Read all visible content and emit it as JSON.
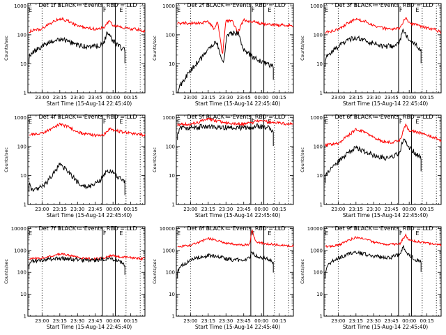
{
  "chart_data": [
    {
      "type": "line",
      "title": "Det 1f BLACK = Events, RED = LLD",
      "xlabel": "Start Time (15-Aug-14 22:45:40)",
      "ylabel": "Counts/sec",
      "yscale": "log",
      "ylim": [
        1,
        1200
      ],
      "xlim": [
        "22:48",
        "00:27"
      ],
      "x_ticks": [
        "23:00",
        "23:15",
        "23:30",
        "23:45",
        "00:00",
        "00:15"
      ],
      "y_ticks": [
        "1",
        "10",
        "100",
        "1000"
      ],
      "region_labels": [
        "E",
        "F",
        "E"
      ],
      "series": [
        {
          "color": "#ff0000",
          "x": [
            "22:49",
            "23:00",
            "23:08",
            "23:15",
            "23:22",
            "23:30",
            "23:38",
            "23:45",
            "23:52",
            "23:57",
            "00:00",
            "00:05",
            "00:15",
            "00:22",
            "00:27"
          ],
          "values": [
            130,
            160,
            260,
            370,
            300,
            200,
            170,
            160,
            170,
            320,
            200,
            190,
            160,
            150,
            130
          ]
        },
        {
          "color": "#000000",
          "x": [
            "22:49",
            "22:52",
            "23:00",
            "23:08",
            "23:15",
            "23:22",
            "23:30",
            "23:38",
            "23:45",
            "23:52",
            "23:55",
            "23:57",
            "00:00",
            "00:05",
            "00:10"
          ],
          "values": [
            18,
            25,
            40,
            60,
            70,
            60,
            45,
            38,
            40,
            48,
            120,
            95,
            60,
            40,
            30
          ]
        }
      ]
    },
    {
      "type": "line",
      "title": "Det 2f BLACK = Events, RED = LLD",
      "xlabel": "Start Time (15-Aug-14 22:45:40)",
      "ylabel": "Counts/sec",
      "yscale": "log",
      "ylim": [
        1,
        1200
      ],
      "xlim": [
        "22:48",
        "00:27"
      ],
      "x_ticks": [
        "23:00",
        "23:15",
        "23:30",
        "23:45",
        "00:00",
        "00:15"
      ],
      "y_ticks": [
        "1",
        "10",
        "100",
        "1000"
      ],
      "region_labels": [
        "E",
        "F",
        "E"
      ],
      "series": [
        {
          "color": "#ff0000",
          "x": [
            "22:49",
            "23:00",
            "23:08",
            "23:15",
            "23:20",
            "23:23",
            "23:27",
            "23:30",
            "23:35",
            "23:40",
            "23:45",
            "23:55",
            "00:05",
            "00:15",
            "00:27"
          ],
          "values": [
            250,
            250,
            250,
            280,
            160,
            300,
            20,
            300,
            320,
            120,
            320,
            270,
            220,
            220,
            210
          ]
        },
        {
          "color": "#000000",
          "x": [
            "22:49",
            "22:52",
            "23:00",
            "23:08",
            "23:15",
            "23:22",
            "23:28",
            "23:31",
            "23:35",
            "23:40",
            "23:45",
            "23:55",
            "00:00",
            "00:05",
            "00:10"
          ],
          "values": [
            1.2,
            2,
            6,
            14,
            30,
            60,
            10,
            100,
            110,
            120,
            30,
            15,
            12,
            10,
            8
          ]
        }
      ]
    },
    {
      "type": "line",
      "title": "Det 3f BLACK = Events, RED = LLD",
      "xlabel": "Start Time (15-Aug-14 22:45:40)",
      "ylabel": "Counts/sec",
      "yscale": "log",
      "ylim": [
        1,
        1200
      ],
      "xlim": [
        "22:48",
        "00:27"
      ],
      "x_ticks": [
        "23:00",
        "23:15",
        "23:30",
        "23:45",
        "00:00",
        "00:15"
      ],
      "y_ticks": [
        "1",
        "10",
        "100",
        "1000"
      ],
      "region_labels": [
        "E",
        "F",
        "E"
      ],
      "series": [
        {
          "color": "#ff0000",
          "x": [
            "22:49",
            "23:00",
            "23:08",
            "23:15",
            "23:22",
            "23:30",
            "23:38",
            "23:45",
            "23:52",
            "23:57",
            "00:00",
            "00:05",
            "00:15",
            "00:22",
            "00:27"
          ],
          "values": [
            120,
            150,
            250,
            350,
            300,
            200,
            170,
            160,
            170,
            400,
            250,
            220,
            170,
            150,
            120
          ]
        },
        {
          "color": "#000000",
          "x": [
            "22:49",
            "22:52",
            "23:00",
            "23:08",
            "23:15",
            "23:22",
            "23:30",
            "23:38",
            "23:45",
            "23:52",
            "23:55",
            "23:57",
            "00:00",
            "00:05",
            "00:10"
          ],
          "values": [
            15,
            22,
            40,
            65,
            80,
            65,
            50,
            40,
            42,
            55,
            150,
            110,
            70,
            50,
            30
          ]
        }
      ]
    },
    {
      "type": "line",
      "title": "Det 4f BLACK = Events, RED = LLD",
      "xlabel": "Start Time (15-Aug-14 22:45:40)",
      "ylabel": "Counts/sec",
      "yscale": "log",
      "ylim": [
        1,
        1200
      ],
      "xlim": [
        "22:48",
        "00:27"
      ],
      "x_ticks": [
        "23:00",
        "23:15",
        "23:30",
        "23:45",
        "00:00",
        "00:15"
      ],
      "y_ticks": [
        "1",
        "10",
        "100",
        "1000"
      ],
      "region_labels": [
        "E",
        "F",
        "E"
      ],
      "series": [
        {
          "color": "#ff0000",
          "x": [
            "22:49",
            "23:00",
            "23:08",
            "23:15",
            "23:22",
            "23:30",
            "23:38",
            "23:45",
            "23:52",
            "23:57",
            "00:00",
            "00:05",
            "00:15",
            "00:22",
            "00:27"
          ],
          "values": [
            260,
            280,
            420,
            580,
            480,
            320,
            260,
            240,
            250,
            420,
            380,
            330,
            290,
            260,
            250
          ]
        },
        {
          "color": "#000000",
          "x": [
            "22:49",
            "22:52",
            "23:00",
            "23:08",
            "23:15",
            "23:22",
            "23:30",
            "23:38",
            "23:45",
            "23:52",
            "23:55",
            "23:57",
            "00:00",
            "00:05",
            "00:10"
          ],
          "values": [
            5,
            3,
            4,
            9,
            24,
            14,
            6,
            4,
            5,
            9,
            14,
            15,
            12,
            8,
            6
          ]
        }
      ]
    },
    {
      "type": "line",
      "title": "Det 5f BLACK = Events, RED = LLD",
      "xlabel": "Start Time (15-Aug-14 22:45:40)",
      "ylabel": "Counts/sec",
      "yscale": "log",
      "ylim": [
        1,
        1200
      ],
      "xlim": [
        "22:48",
        "00:27"
      ],
      "x_ticks": [
        "23:00",
        "23:15",
        "23:30",
        "23:45",
        "00:00",
        "00:15"
      ],
      "y_ticks": [
        "1",
        "10",
        "100",
        "1000"
      ],
      "region_labels": [
        "E",
        "F",
        "E"
      ],
      "series": [
        {
          "color": "#ff0000",
          "x": [
            "22:49",
            "23:00",
            "23:08",
            "23:15",
            "23:22",
            "23:30",
            "23:38",
            "23:45",
            "23:52",
            "23:57",
            "00:00",
            "00:05",
            "00:15",
            "00:22",
            "00:27"
          ],
          "values": [
            560,
            580,
            720,
            880,
            760,
            650,
            610,
            600,
            640,
            760,
            740,
            700,
            650,
            600,
            580
          ]
        },
        {
          "color": "#000000",
          "x": [
            "22:49",
            "22:52",
            "23:00",
            "23:08",
            "23:15",
            "23:22",
            "23:30",
            "23:38",
            "23:45",
            "23:52",
            "23:55",
            "23:57",
            "00:00",
            "00:05",
            "00:10"
          ],
          "values": [
            300,
            420,
            450,
            470,
            500,
            480,
            450,
            430,
            440,
            460,
            490,
            500,
            480,
            470,
            300
          ]
        }
      ]
    },
    {
      "type": "line",
      "title": "Det 6f BLACK = Events, RED = LLD",
      "xlabel": "Start Time (15-Aug-14 22:45:40)",
      "ylabel": "Counts/sec",
      "yscale": "log",
      "ylim": [
        1,
        1200
      ],
      "xlim": [
        "22:48",
        "00:27"
      ],
      "x_ticks": [
        "23:00",
        "23:15",
        "23:30",
        "23:45",
        "00:00",
        "00:15"
      ],
      "y_ticks": [
        "1",
        "10",
        "100",
        "1000"
      ],
      "region_labels": [
        "E",
        "F",
        "E"
      ],
      "series": [
        {
          "color": "#ff0000",
          "x": [
            "22:49",
            "23:00",
            "23:08",
            "23:15",
            "23:22",
            "23:30",
            "23:38",
            "23:45",
            "23:52",
            "23:57",
            "00:00",
            "00:05",
            "00:15",
            "00:22",
            "00:27"
          ],
          "values": [
            110,
            130,
            230,
            380,
            320,
            200,
            150,
            140,
            160,
            550,
            350,
            330,
            250,
            200,
            160
          ]
        },
        {
          "color": "#000000",
          "x": [
            "22:49",
            "22:52",
            "23:00",
            "23:08",
            "23:15",
            "23:22",
            "23:30",
            "23:38",
            "23:45",
            "23:52",
            "23:55",
            "23:57",
            "00:00",
            "00:05",
            "00:10"
          ],
          "values": [
            10,
            15,
            30,
            60,
            90,
            70,
            50,
            40,
            45,
            60,
            180,
            130,
            90,
            60,
            40
          ]
        }
      ]
    },
    {
      "type": "line",
      "title": "Det 7f BLACK = Events, RED = LLD",
      "xlabel": "Start Time (15-Aug-14 22:45:40)",
      "ylabel": "Counts/sec",
      "yscale": "log",
      "ylim": [
        1,
        12000
      ],
      "xlim": [
        "22:48",
        "00:27"
      ],
      "x_ticks": [
        "23:00",
        "23:15",
        "23:30",
        "23:45",
        "00:00",
        "00:15"
      ],
      "y_ticks": [
        "1",
        "10",
        "100",
        "1000",
        "10000"
      ],
      "region_labels": [
        "E",
        "F",
        "E"
      ],
      "series": [
        {
          "color": "#ff0000",
          "x": [
            "22:49",
            "23:00",
            "23:08",
            "23:15",
            "23:22",
            "23:30",
            "23:38",
            "23:45",
            "23:52",
            "23:57",
            "00:00",
            "00:05",
            "00:15",
            "00:22",
            "00:27"
          ],
          "values": [
            420,
            450,
            550,
            700,
            600,
            480,
            430,
            420,
            450,
            550,
            600,
            520,
            470,
            430,
            410
          ]
        },
        {
          "color": "#000000",
          "x": [
            "22:49",
            "22:52",
            "23:00",
            "23:08",
            "23:15",
            "23:22",
            "23:30",
            "23:38",
            "23:45",
            "23:52",
            "23:55",
            "23:57",
            "00:00",
            "00:05",
            "00:10"
          ],
          "values": [
            250,
            340,
            370,
            400,
            440,
            420,
            380,
            350,
            360,
            400,
            440,
            430,
            400,
            350,
            220
          ]
        }
      ]
    },
    {
      "type": "line",
      "title": "Det 8f BLACK = Events, RED = LLD",
      "xlabel": "Start Time (15-Aug-14 22:45:40)",
      "ylabel": "Counts/sec",
      "yscale": "log",
      "ylim": [
        1,
        12000
      ],
      "xlim": [
        "22:48",
        "00:27"
      ],
      "x_ticks": [
        "23:00",
        "23:15",
        "23:30",
        "23:45",
        "00:00",
        "00:15"
      ],
      "y_ticks": [
        "1",
        "10",
        "100",
        "1000",
        "10000"
      ],
      "region_labels": [
        "E",
        "F",
        "E"
      ],
      "series": [
        {
          "color": "#ff0000",
          "x": [
            "22:49",
            "23:00",
            "23:08",
            "23:15",
            "23:22",
            "23:30",
            "23:38",
            "23:45",
            "23:50",
            "23:52",
            "23:55",
            "00:00",
            "00:05",
            "00:15",
            "00:27"
          ],
          "values": [
            1500,
            1700,
            2500,
            3500,
            3000,
            2200,
            1900,
            1800,
            1900,
            9000,
            2500,
            2200,
            2000,
            1800,
            1600
          ]
        },
        {
          "color": "#000000",
          "x": [
            "22:49",
            "22:52",
            "23:00",
            "23:08",
            "23:15",
            "23:22",
            "23:30",
            "23:38",
            "23:45",
            "23:50",
            "23:52",
            "23:55",
            "00:00",
            "00:05",
            "00:10"
          ],
          "values": [
            100,
            200,
            350,
            500,
            600,
            520,
            420,
            370,
            380,
            450,
            900,
            600,
            500,
            400,
            280
          ]
        }
      ]
    },
    {
      "type": "line",
      "title": "Det 9f BLACK = Events, RED = LLD",
      "xlabel": "Start Time (15-Aug-14 22:45:40)",
      "ylabel": "Counts/sec",
      "yscale": "log",
      "ylim": [
        1,
        12000
      ],
      "xlim": [
        "22:48",
        "00:27"
      ],
      "x_ticks": [
        "23:00",
        "23:15",
        "23:30",
        "23:45",
        "00:00",
        "00:15"
      ],
      "y_ticks": [
        "1",
        "10",
        "100",
        "1000",
        "10000"
      ],
      "region_labels": [
        "E",
        "F",
        "E"
      ],
      "series": [
        {
          "color": "#ff0000",
          "x": [
            "22:49",
            "23:00",
            "23:08",
            "23:15",
            "23:22",
            "23:30",
            "23:38",
            "23:45",
            "23:52",
            "23:57",
            "00:00",
            "00:05",
            "00:15",
            "00:22",
            "00:27"
          ],
          "values": [
            1500,
            1700,
            2800,
            4000,
            3400,
            2400,
            2000,
            1900,
            2000,
            5000,
            3000,
            2600,
            2200,
            1900,
            1700
          ]
        },
        {
          "color": "#000000",
          "x": [
            "22:49",
            "22:52",
            "23:00",
            "23:08",
            "23:15",
            "23:22",
            "23:30",
            "23:38",
            "23:45",
            "23:52",
            "23:55",
            "23:57",
            "00:00",
            "00:05",
            "00:10"
          ],
          "values": [
            100,
            250,
            450,
            650,
            800,
            700,
            550,
            480,
            500,
            650,
            1400,
            900,
            600,
            400,
            300
          ]
        }
      ]
    }
  ]
}
